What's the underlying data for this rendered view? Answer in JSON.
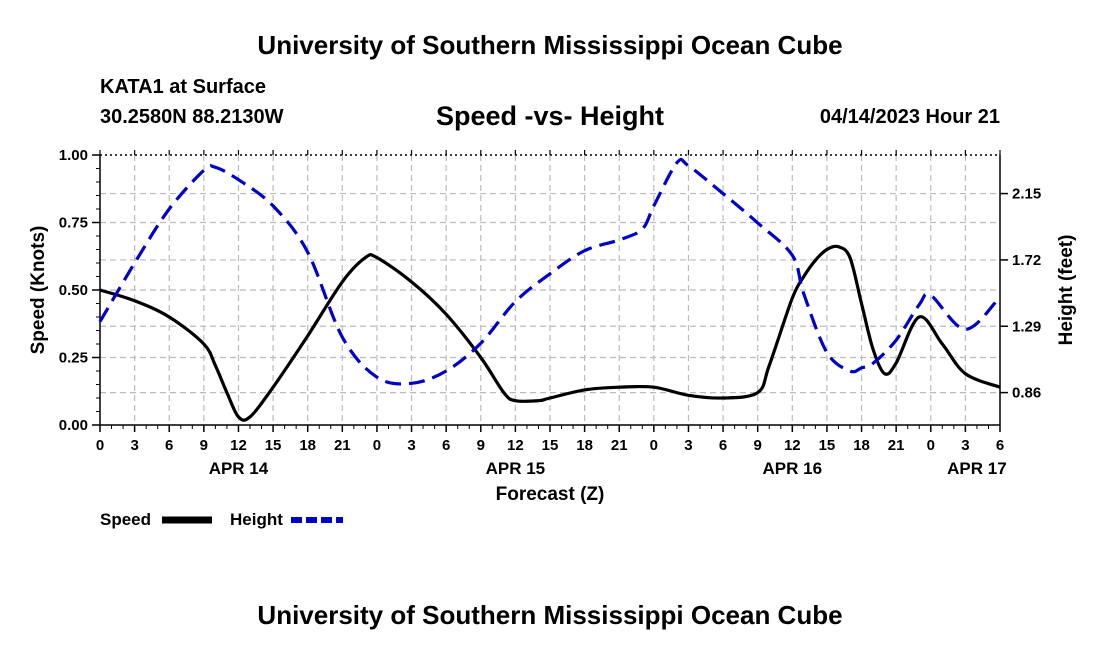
{
  "header": {
    "title": "University of Southern Mississippi Ocean Cube",
    "station": "KATA1 at Surface",
    "coordinates": "30.2580N  88.2130W",
    "chart_title": "Speed -vs- Height",
    "datetime": "04/14/2023 Hour 21"
  },
  "footer": {
    "title": "University of Southern Mississippi Ocean Cube"
  },
  "legend": {
    "speed_label": "Speed",
    "height_label": "Height"
  },
  "colors": {
    "speed": "#000000",
    "height": "#0000cc",
    "grid": "#bbbbbb"
  },
  "chart_data": {
    "type": "line",
    "title": "Speed -vs- Height",
    "xlabel": "Forecast (Z)",
    "ylabel": "Speed (Knots)",
    "y2label": "Height (feet)",
    "xlim": [
      0,
      78
    ],
    "ylim": [
      0,
      1
    ],
    "y2lim": [
      0.65,
      2.4
    ],
    "x_ticks": [
      0,
      3,
      6,
      9,
      12,
      15,
      18,
      21,
      24,
      27,
      30,
      33,
      36,
      39,
      42,
      45,
      48,
      51,
      54,
      57,
      60,
      63,
      66,
      69,
      72,
      75,
      78
    ],
    "x_tick_labels": [
      "0",
      "3",
      "6",
      "9",
      "12",
      "15",
      "18",
      "21",
      "0",
      "3",
      "6",
      "9",
      "12",
      "15",
      "18",
      "21",
      "0",
      "3",
      "6",
      "9",
      "12",
      "15",
      "18",
      "21",
      "0",
      "3",
      "6"
    ],
    "date_labels": [
      {
        "x": 12,
        "label": "APR 14"
      },
      {
        "x": 36,
        "label": "APR 15"
      },
      {
        "x": 60,
        "label": "APR 16"
      },
      {
        "x": 76,
        "label": "APR 17"
      }
    ],
    "y_ticks": [
      0,
      0.25,
      0.5,
      0.75,
      1.0
    ],
    "y_tick_labels": [
      "0.00",
      "0.25",
      "0.50",
      "0.75",
      "1.00"
    ],
    "y2_ticks": [
      0.86,
      1.29,
      1.72,
      2.15
    ],
    "y2_tick_labels": [
      "0.86",
      "1.29",
      "1.72",
      "2.15"
    ],
    "series": [
      {
        "name": "Speed",
        "axis": "left",
        "style": "solid",
        "x": [
          0,
          3,
          6,
          9,
          10,
          11,
          12,
          13,
          15,
          18,
          21,
          23,
          24,
          27,
          30,
          33,
          35,
          36,
          38,
          39,
          42,
          45,
          48,
          51,
          54,
          57,
          58,
          60,
          61,
          62,
          63,
          64,
          65,
          66,
          67,
          68,
          69,
          71,
          73,
          75,
          78
        ],
        "y": [
          0.5,
          0.46,
          0.4,
          0.3,
          0.22,
          0.12,
          0.03,
          0.03,
          0.14,
          0.33,
          0.53,
          0.62,
          0.62,
          0.53,
          0.41,
          0.25,
          0.12,
          0.09,
          0.09,
          0.1,
          0.13,
          0.14,
          0.14,
          0.11,
          0.1,
          0.12,
          0.22,
          0.47,
          0.55,
          0.61,
          0.65,
          0.66,
          0.62,
          0.45,
          0.28,
          0.19,
          0.23,
          0.4,
          0.3,
          0.19,
          0.14
        ]
      },
      {
        "name": "Height",
        "axis": "right",
        "style": "dashed",
        "x": [
          0,
          3,
          6,
          9,
          10,
          12,
          15,
          18,
          21,
          24,
          27,
          30,
          33,
          36,
          39,
          42,
          45,
          47,
          48,
          50,
          51,
          54,
          57,
          60,
          61,
          63,
          65,
          66,
          67,
          69,
          71,
          72,
          75,
          78
        ],
        "y": [
          1.32,
          1.7,
          2.05,
          2.3,
          2.32,
          2.24,
          2.07,
          1.77,
          1.22,
          0.96,
          0.92,
          1.0,
          1.18,
          1.45,
          1.63,
          1.78,
          1.85,
          1.92,
          2.07,
          2.35,
          2.33,
          2.15,
          1.96,
          1.75,
          1.5,
          1.12,
          1.0,
          1.02,
          1.05,
          1.2,
          1.43,
          1.49,
          1.27,
          1.48
        ]
      }
    ]
  }
}
